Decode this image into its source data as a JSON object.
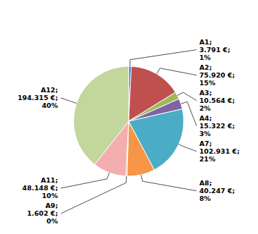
{
  "chart_data": {
    "type": "pie",
    "categories": [
      "A1;",
      "A2;",
      "A3;",
      "A4;",
      "A7;",
      "A8;",
      "A9;",
      "A11;",
      "A12;"
    ],
    "values": [
      3791,
      75920,
      10564,
      15322,
      102931,
      40247,
      1602,
      48148,
      194315
    ],
    "value_labels": [
      "3.791 €;",
      "75.920 €;",
      "10.564 €;",
      "15.322 €;",
      "102.931 €;",
      "40.247 €;",
      "1.602 €;",
      "48.148 €;",
      "194.315 €;"
    ],
    "percentages": [
      1,
      15,
      2,
      3,
      21,
      8,
      0,
      10,
      40
    ],
    "percentage_labels": [
      "1%",
      "15%",
      "2%",
      "3%",
      "21%",
      "8%",
      "0%",
      "10%",
      "40%"
    ],
    "colors": [
      "#4472C4",
      "#C0504D",
      "#9BBB59",
      "#8064A2",
      "#4BACC6",
      "#F79646",
      "#E46C0A",
      "#F2AFAD",
      "#C3D69B"
    ],
    "data_labels": true
  }
}
